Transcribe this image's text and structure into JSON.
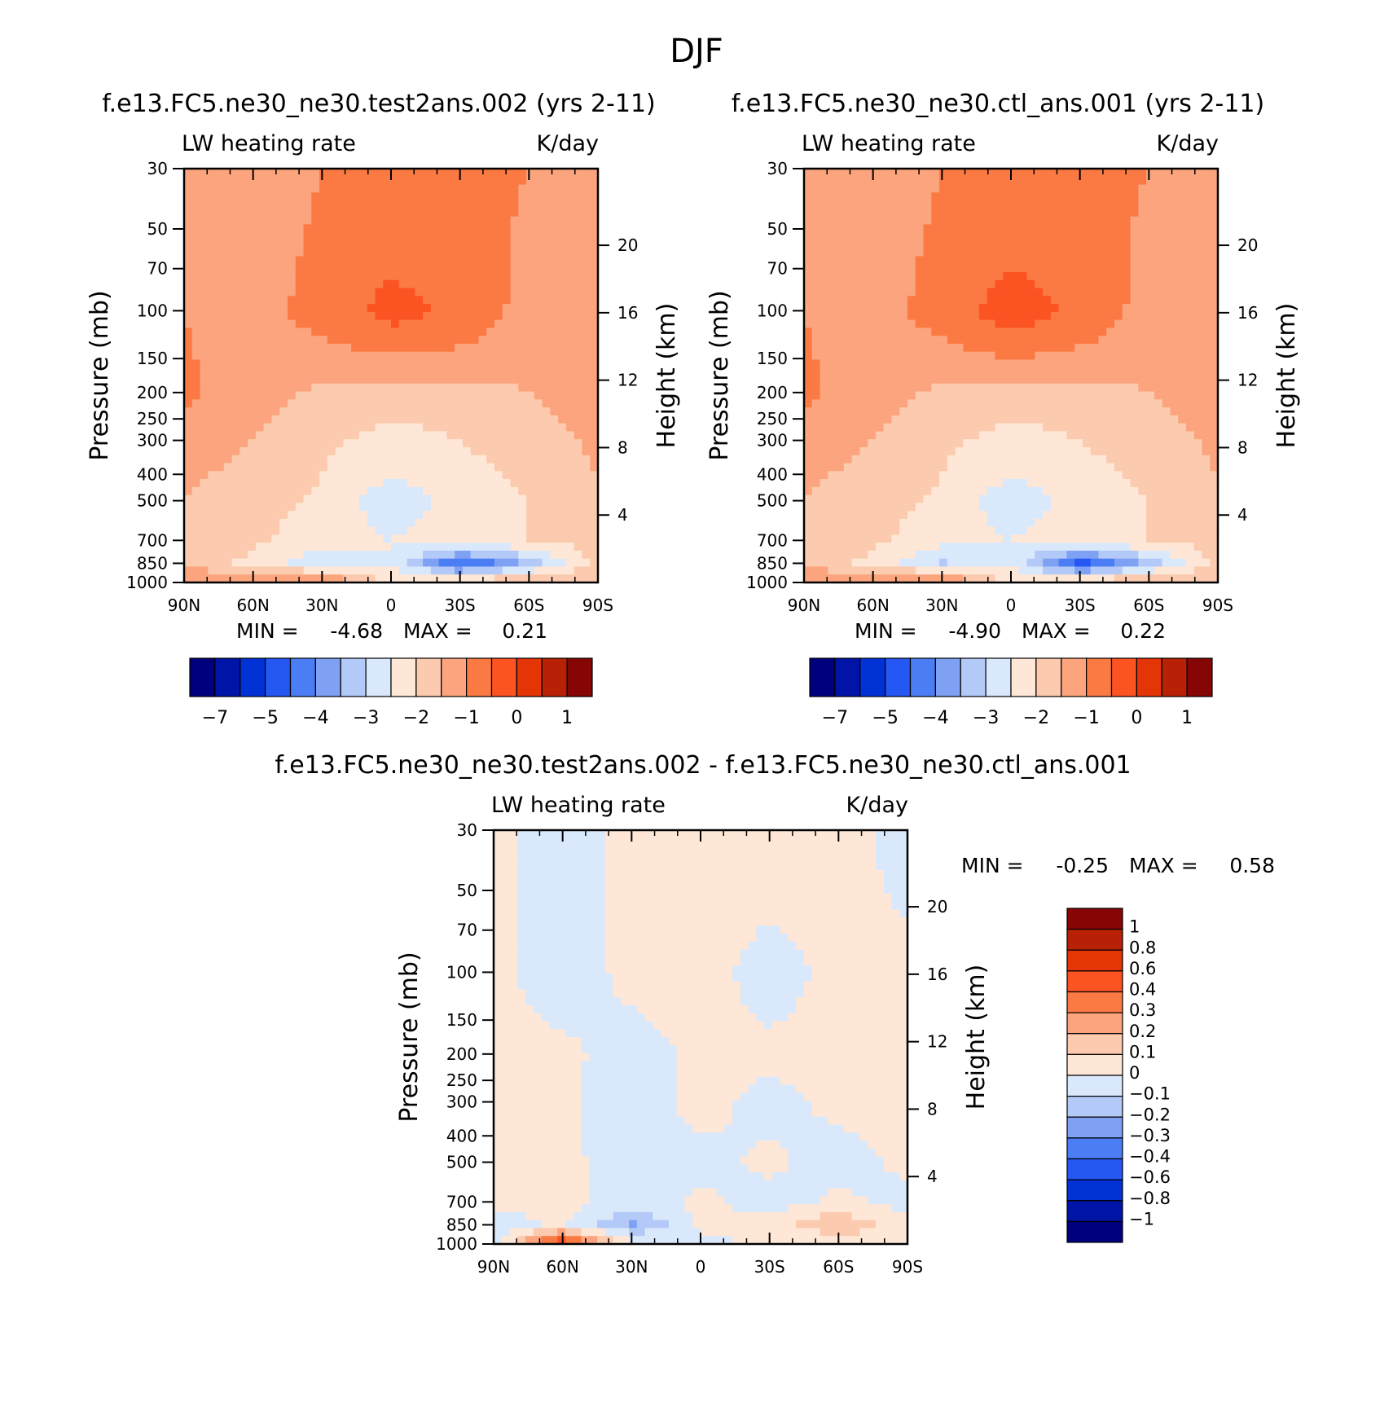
{
  "page_title": "DJF",
  "colors": {
    "abs_scale": [
      "#00007f",
      "#0015a8",
      "#0032d6",
      "#2557f2",
      "#4b7ef4",
      "#7fa1f4",
      "#b3c9f8",
      "#d9e8fb",
      "#fee7d6",
      "#fccaae",
      "#fba47d",
      "#fb7a44",
      "#fb5322",
      "#e33506",
      "#b82106",
      "#860505"
    ],
    "diff_scale": [
      "#00007f",
      "#0015a8",
      "#0032d6",
      "#2557f2",
      "#4b7ef4",
      "#7fa1f4",
      "#b3c9f8",
      "#d9e8fb",
      "#fee7d6",
      "#fccaae",
      "#fba47d",
      "#fb7a44",
      "#fb5322",
      "#e33506",
      "#b82106",
      "#860505"
    ]
  },
  "chart_data": [
    {
      "type": "heatmap",
      "title": "f.e13.FC5.ne30_ne30.test2ans.002 (yrs 2-11)",
      "subtitle_left": "LW heating rate",
      "subtitle_right": "K/day",
      "ylabel": "Pressure (mb)",
      "ylabel_right": "Height (km)",
      "x_ticks": [
        "90N",
        "60N",
        "30N",
        "0",
        "30S",
        "60S",
        "90S"
      ],
      "y_ticks": [
        "30",
        "50",
        "70",
        "100",
        "150",
        "200",
        "250",
        "300",
        "400",
        "500",
        "700",
        "850",
        "1000"
      ],
      "y_ticks_right": [
        "20",
        "16",
        "12",
        "8",
        "4"
      ],
      "min_label": "MIN =",
      "min_value": "-4.68",
      "max_label": "MAX =",
      "max_value": "0.21",
      "colorbar_ticks": [
        "-7",
        "-5",
        "-4",
        "-3",
        "-2",
        "-1",
        "0",
        "1"
      ],
      "levels": [
        -7,
        -6,
        -5,
        -4.5,
        -4,
        -3.5,
        -3,
        -2.5,
        -2,
        -1.5,
        -1,
        -0.5,
        0,
        0.5,
        1
      ],
      "x": [
        -90,
        -60,
        -30,
        0,
        30,
        60,
        90
      ],
      "y": [
        30,
        100,
        200,
        300,
        500,
        700,
        850,
        1000
      ],
      "z": [
        [
          -1.5,
          -1.2,
          -1.0,
          -0.9,
          -0.9,
          -1.0,
          -1.2
        ],
        [
          -1.0,
          -1.2,
          -0.8,
          -0.3,
          -0.6,
          -1.2,
          -1.2
        ],
        [
          -0.9,
          -1.3,
          -1.6,
          -1.8,
          -1.7,
          -1.5,
          -1.1
        ],
        [
          -1.3,
          -1.5,
          -1.9,
          -2.2,
          -2.0,
          -1.8,
          -1.4
        ],
        [
          -1.5,
          -1.8,
          -2.1,
          -2.8,
          -2.3,
          -2.0,
          -1.6
        ],
        [
          -1.7,
          -1.9,
          -2.3,
          -2.5,
          -2.2,
          -2.0,
          -1.8
        ],
        [
          -1.8,
          -2.1,
          -3.0,
          -2.5,
          -4.6,
          -3.4,
          -1.8
        ],
        [
          -0.8,
          -0.8,
          -0.7,
          -2.2,
          -1.6,
          -1.2,
          -1.5
        ]
      ]
    },
    {
      "type": "heatmap",
      "title": "f.e13.FC5.ne30_ne30.ctl_ans.001 (yrs 2-11)",
      "subtitle_left": "LW heating rate",
      "subtitle_right": "K/day",
      "ylabel": "Pressure (mb)",
      "ylabel_right": "Height (km)",
      "x_ticks": [
        "90N",
        "60N",
        "30N",
        "0",
        "30S",
        "60S",
        "90S"
      ],
      "y_ticks": [
        "30",
        "50",
        "70",
        "100",
        "150",
        "200",
        "250",
        "300",
        "400",
        "500",
        "700",
        "850",
        "1000"
      ],
      "y_ticks_right": [
        "20",
        "16",
        "12",
        "8",
        "4"
      ],
      "min_label": "MIN =",
      "min_value": "-4.90",
      "max_label": "MAX =",
      "max_value": "0.22",
      "colorbar_ticks": [
        "-7",
        "-5",
        "-4",
        "-3",
        "-2",
        "-1",
        "0",
        "1"
      ],
      "levels": [
        -7,
        -6,
        -5,
        -4.5,
        -4,
        -3.5,
        -3,
        -2.5,
        -2,
        -1.5,
        -1,
        -0.5,
        0,
        0.5,
        1
      ],
      "x": [
        -90,
        -60,
        -30,
        0,
        30,
        60,
        90
      ],
      "y": [
        30,
        100,
        200,
        300,
        500,
        700,
        850,
        1000
      ],
      "z": [
        [
          -1.5,
          -1.2,
          -1.0,
          -0.9,
          -0.9,
          -1.0,
          -1.2
        ],
        [
          -1.0,
          -1.2,
          -0.8,
          -0.2,
          -0.6,
          -1.2,
          -1.2
        ],
        [
          -0.9,
          -1.3,
          -1.6,
          -1.8,
          -1.7,
          -1.5,
          -1.1
        ],
        [
          -1.3,
          -1.5,
          -1.9,
          -2.2,
          -2.0,
          -1.8,
          -1.4
        ],
        [
          -1.5,
          -1.8,
          -2.1,
          -2.8,
          -2.3,
          -2.0,
          -1.6
        ],
        [
          -1.7,
          -1.9,
          -2.3,
          -2.5,
          -2.2,
          -2.0,
          -1.8
        ],
        [
          -1.8,
          -2.1,
          -3.1,
          -2.5,
          -4.8,
          -3.4,
          -1.8
        ],
        [
          -0.8,
          -0.8,
          -0.7,
          -2.2,
          -1.6,
          -1.2,
          -1.5
        ]
      ]
    },
    {
      "type": "heatmap",
      "title": "f.e13.FC5.ne30_ne30.test2ans.002 - f.e13.FC5.ne30_ne30.ctl_ans.001",
      "subtitle_left": "LW heating rate",
      "subtitle_right": "K/day",
      "ylabel": "Pressure (mb)",
      "ylabel_right": "Height (km)",
      "x_ticks": [
        "90N",
        "60N",
        "30N",
        "0",
        "30S",
        "60S",
        "90S"
      ],
      "y_ticks": [
        "30",
        "50",
        "70",
        "100",
        "150",
        "200",
        "250",
        "300",
        "400",
        "500",
        "700",
        "850",
        "1000"
      ],
      "y_ticks_right": [
        "20",
        "16",
        "12",
        "8",
        "4"
      ],
      "min_label": "MIN =",
      "min_value": "-0.25",
      "max_label": "MAX =",
      "max_value": "0.58",
      "colorbar_ticks": [
        "1",
        "0.8",
        "0.6",
        "0.4",
        "0.3",
        "0.2",
        "0.1",
        "0",
        "-0.1",
        "-0.2",
        "-0.3",
        "-0.4",
        "-0.6",
        "-0.8",
        "-1"
      ],
      "levels": [
        -1,
        -0.8,
        -0.6,
        -0.4,
        -0.3,
        -0.2,
        -0.1,
        0,
        0.1,
        0.2,
        0.3,
        0.4,
        0.6,
        0.8,
        1
      ],
      "x": [
        -90,
        -60,
        -30,
        0,
        30,
        60,
        90
      ],
      "y": [
        30,
        100,
        200,
        300,
        500,
        700,
        850,
        1000
      ],
      "z": [
        [
          0.02,
          -0.03,
          0.02,
          0.02,
          0.03,
          0.02,
          -0.02
        ],
        [
          0.02,
          -0.04,
          0.02,
          0.03,
          -0.03,
          0.02,
          0.02
        ],
        [
          0.03,
          0.02,
          -0.04,
          0.02,
          0.02,
          0.03,
          0.02
        ],
        [
          0.02,
          0.02,
          -0.05,
          0.03,
          -0.03,
          0.02,
          0.03
        ],
        [
          0.03,
          0.02,
          -0.04,
          -0.03,
          0.02,
          -0.04,
          0.02
        ],
        [
          0.02,
          0.03,
          -0.05,
          0.02,
          -0.04,
          0.02,
          -0.03
        ],
        [
          -0.05,
          0.02,
          -0.22,
          0.02,
          0.03,
          0.2,
          0.02
        ],
        [
          -0.05,
          0.55,
          0.03,
          -0.03,
          0.02,
          0.02,
          0.02
        ]
      ]
    }
  ]
}
